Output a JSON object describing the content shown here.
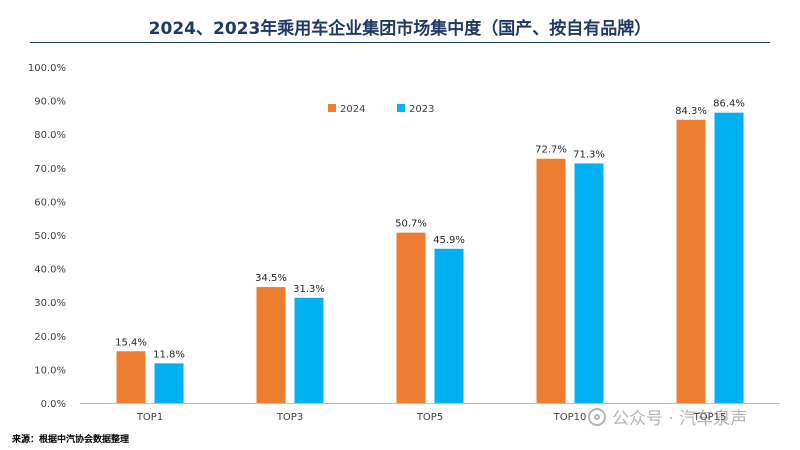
{
  "title": "2024、2023年乘用车企业集团市场集中度（国产、按自有品牌）",
  "source": "来源：根据中汽协会数据整理",
  "watermark": "公众号 · 汽车泉声",
  "colors": {
    "s2024": "#ed7d31",
    "s2023": "#00b0f0",
    "title": "#1f3864"
  },
  "chart_data": {
    "type": "bar",
    "title": "2024、2023年乘用车企业集团市场集中度（国产、按自有品牌）",
    "categories": [
      "TOP1",
      "TOP3",
      "TOP5",
      "TOP10",
      "TOP15"
    ],
    "series": [
      {
        "name": "2024",
        "values": [
          15.4,
          34.5,
          50.7,
          72.7,
          84.3
        ],
        "labels": [
          "15.4%",
          "34.5%",
          "50.7%",
          "72.7%",
          "84.3%"
        ]
      },
      {
        "name": "2023",
        "values": [
          11.8,
          31.3,
          45.9,
          71.3,
          86.4
        ],
        "labels": [
          "11.8%",
          "31.3%",
          "45.9%",
          "71.3%",
          "86.4%"
        ]
      }
    ],
    "yticks": [
      "0.0%",
      "10.0%",
      "20.0%",
      "30.0%",
      "40.0%",
      "50.0%",
      "60.0%",
      "70.0%",
      "80.0%",
      "90.0%",
      "100.0%"
    ],
    "ylim": [
      0,
      100
    ],
    "legend_position": "top-left",
    "grid": false
  }
}
